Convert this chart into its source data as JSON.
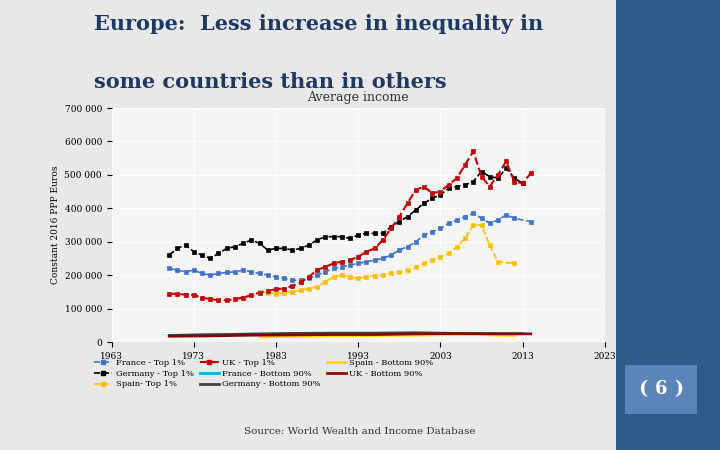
{
  "title_line1": "Europe:  Less increase in inequality in",
  "title_line2": "some countries than in others",
  "subtitle": "Average income",
  "ylabel": "Constant 2016 PPP Euros",
  "source": "Source: World Wealth and Income Database",
  "xlim": [
    1963,
    2023
  ],
  "ylim": [
    0,
    700000
  ],
  "xticks": [
    1963,
    1973,
    1983,
    1993,
    2003,
    2013,
    2023
  ],
  "yticks": [
    0,
    100000,
    200000,
    300000,
    400000,
    500000,
    600000,
    700000
  ],
  "bg_color": "#e8e8e8",
  "sidebar_color": "#2E5B8A",
  "plot_bg": "#f5f5f5",
  "series": {
    "france_top1": {
      "label": "France - Top 1%",
      "color": "#4472C4",
      "style": "--",
      "marker": "s",
      "markersize": 3,
      "linewidth": 1.2,
      "years": [
        1970,
        1971,
        1972,
        1973,
        1974,
        1975,
        1976,
        1977,
        1978,
        1979,
        1980,
        1981,
        1982,
        1983,
        1984,
        1985,
        1986,
        1987,
        1988,
        1989,
        1990,
        1991,
        1992,
        1993,
        1994,
        1995,
        1996,
        1997,
        1998,
        1999,
        2000,
        2001,
        2002,
        2003,
        2004,
        2005,
        2006,
        2007,
        2008,
        2009,
        2010,
        2011,
        2012,
        2014
      ],
      "values": [
        220000,
        215000,
        210000,
        215000,
        205000,
        200000,
        205000,
        208000,
        210000,
        215000,
        210000,
        205000,
        200000,
        195000,
        190000,
        185000,
        185000,
        190000,
        200000,
        210000,
        220000,
        225000,
        230000,
        235000,
        240000,
        245000,
        250000,
        260000,
        275000,
        285000,
        300000,
        320000,
        330000,
        340000,
        355000,
        365000,
        375000,
        385000,
        370000,
        355000,
        365000,
        380000,
        370000,
        360000
      ]
    },
    "germany_top1": {
      "label": "Germany - Top 1%",
      "color": "#000000",
      "style": "--",
      "marker": "s",
      "markersize": 3,
      "linewidth": 1.2,
      "years": [
        1970,
        1971,
        1972,
        1973,
        1974,
        1975,
        1976,
        1977,
        1978,
        1979,
        1980,
        1981,
        1982,
        1983,
        1984,
        1985,
        1986,
        1987,
        1988,
        1989,
        1990,
        1991,
        1992,
        1993,
        1994,
        1995,
        1996,
        1997,
        1998,
        1999,
        2000,
        2001,
        2002,
        2003,
        2004,
        2005,
        2006,
        2007,
        2008,
        2009,
        2010,
        2011,
        2012,
        2013
      ],
      "values": [
        260000,
        280000,
        290000,
        270000,
        260000,
        250000,
        265000,
        280000,
        285000,
        295000,
        305000,
        295000,
        275000,
        280000,
        280000,
        275000,
        280000,
        290000,
        305000,
        315000,
        315000,
        315000,
        310000,
        320000,
        325000,
        325000,
        325000,
        345000,
        360000,
        375000,
        395000,
        415000,
        430000,
        440000,
        460000,
        465000,
        470000,
        480000,
        510000,
        495000,
        490000,
        520000,
        490000,
        475000
      ]
    },
    "spain_top1": {
      "label": "Spain- Top 1%",
      "color": "#FFC000",
      "style": "--",
      "marker": "s",
      "markersize": 3,
      "linewidth": 1.2,
      "years": [
        1981,
        1982,
        1983,
        1984,
        1985,
        1986,
        1987,
        1988,
        1989,
        1990,
        1991,
        1992,
        1993,
        1994,
        1995,
        1996,
        1997,
        1998,
        1999,
        2000,
        2001,
        2002,
        2003,
        2004,
        2005,
        2006,
        2007,
        2008,
        2009,
        2010,
        2012
      ],
      "values": [
        150000,
        148000,
        145000,
        148000,
        150000,
        155000,
        160000,
        165000,
        180000,
        195000,
        200000,
        195000,
        190000,
        195000,
        198000,
        200000,
        205000,
        210000,
        215000,
        225000,
        235000,
        245000,
        255000,
        265000,
        285000,
        310000,
        350000,
        350000,
        290000,
        240000,
        235000
      ]
    },
    "uk_top1": {
      "label": "UK - Top 1%",
      "color": "#C00000",
      "style": "--",
      "marker": "s",
      "markersize": 3,
      "linewidth": 1.5,
      "years": [
        1970,
        1971,
        1972,
        1973,
        1974,
        1975,
        1976,
        1977,
        1978,
        1979,
        1980,
        1981,
        1982,
        1983,
        1984,
        1985,
        1986,
        1987,
        1988,
        1989,
        1990,
        1991,
        1992,
        1993,
        1994,
        1995,
        1996,
        1997,
        1998,
        1999,
        2000,
        2001,
        2002,
        2003,
        2004,
        2005,
        2006,
        2007,
        2008,
        2009,
        2010,
        2011,
        2012,
        2013,
        2014
      ],
      "values": [
        145000,
        143000,
        142000,
        140000,
        133000,
        128000,
        125000,
        125000,
        128000,
        133000,
        140000,
        148000,
        153000,
        158000,
        160000,
        168000,
        178000,
        195000,
        215000,
        225000,
        235000,
        240000,
        245000,
        255000,
        270000,
        280000,
        305000,
        340000,
        375000,
        415000,
        455000,
        465000,
        445000,
        450000,
        470000,
        490000,
        530000,
        570000,
        495000,
        465000,
        500000,
        540000,
        480000,
        475000,
        505000
      ]
    },
    "france_bottom90": {
      "label": "France - Bottom 90%",
      "color": "#00B0F0",
      "style": "-",
      "marker": null,
      "markersize": 0,
      "linewidth": 1.8,
      "years": [
        1970,
        1975,
        1980,
        1985,
        1990,
        1995,
        2000,
        2005,
        2010,
        2014
      ],
      "values": [
        20000,
        22000,
        24000,
        24000,
        25000,
        25000,
        26000,
        26000,
        25000,
        25000
      ]
    },
    "germany_bottom90": {
      "label": "Germany - Bottom 90%",
      "color": "#404040",
      "style": "-",
      "marker": null,
      "markersize": 0,
      "linewidth": 1.8,
      "years": [
        1970,
        1975,
        1980,
        1985,
        1990,
        1995,
        2000,
        2005,
        2010,
        2013
      ],
      "values": [
        20000,
        22000,
        24000,
        26000,
        27000,
        27000,
        28000,
        26000,
        25000,
        25000
      ]
    },
    "spain_bottom90": {
      "label": "Spain - Bottom 90%",
      "color": "#FFD700",
      "style": "-",
      "marker": null,
      "markersize": 0,
      "linewidth": 1.8,
      "years": [
        1981,
        1985,
        1990,
        1995,
        2000,
        2005,
        2008,
        2010,
        2012
      ],
      "values": [
        15000,
        16000,
        18000,
        19000,
        20000,
        22000,
        22000,
        20000,
        19000
      ]
    },
    "uk_bottom90": {
      "label": "UK - Bottom 90%",
      "color": "#8B0000",
      "style": "-",
      "marker": null,
      "markersize": 0,
      "linewidth": 1.8,
      "years": [
        1970,
        1975,
        1980,
        1985,
        1990,
        1995,
        2000,
        2005,
        2010,
        2014
      ],
      "values": [
        17000,
        18000,
        20000,
        21000,
        22000,
        22000,
        24000,
        25000,
        24000,
        24000
      ]
    }
  }
}
